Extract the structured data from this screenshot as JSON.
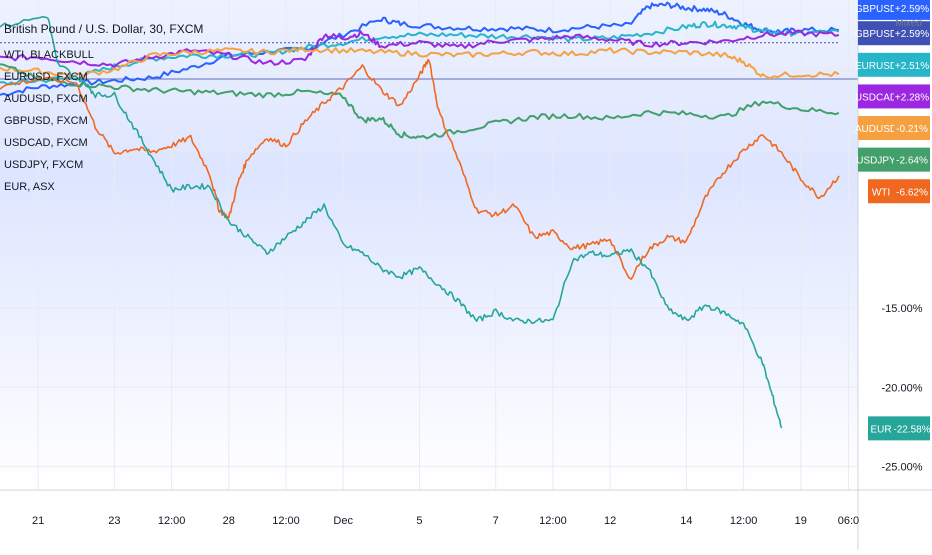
{
  "header": {
    "title": "British Pound / U.S. Dollar, 30, FXCM",
    "scale_mode": "Mixed"
  },
  "legend": [
    "WTI, BLACKBULL",
    "EURUSD, FXCM",
    "AUDUSD, FXCM",
    "GBPUSD, FXCM",
    "USDCAD, FXCM",
    "USDJPY, FXCM",
    "EUR, ASX"
  ],
  "colors": {
    "GBPUSD": "#2962ff",
    "GBPUSD_alt": "#3f51b5",
    "EURUSD": "#26b5c9",
    "USDCAD": "#9c27e0",
    "AUDUSD": "#f5a142",
    "USDJPY": "#43a06b",
    "WTI": "#f06820",
    "EUR": "#26a69a",
    "grid": "#e9ebf0",
    "area_top": "#dfe6ff",
    "area_bottom": "#ffffff"
  },
  "chart_data": {
    "type": "line",
    "yunit": "%",
    "ylim": [
      -26.5,
      4.5
    ],
    "yticks": [
      -15,
      -20,
      -25
    ],
    "ytick_labels": [
      "-15.00%",
      "-20.00%",
      "-25.00%"
    ],
    "x_labels": [
      "21",
      "23",
      "12:00",
      "28",
      "12:00",
      "Dec",
      "5",
      "7",
      "12:00",
      "12",
      "14",
      "12:00",
      "19",
      "06:0"
    ],
    "x_label_index": [
      0.0,
      4.0,
      7.0,
      10.0,
      13.0,
      16.0,
      20.0,
      24.0,
      27.0,
      30.0,
      34.0,
      37.0,
      40.0,
      42.5
    ],
    "x_range": [
      -2.0,
      43.0
    ],
    "series": [
      {
        "name": "GBPUSD",
        "color": "#2962ff",
        "width": 2.0,
        "x": [
          -2,
          0,
          2,
          4,
          6,
          8,
          10,
          12,
          14,
          16,
          18,
          19,
          21,
          23,
          25,
          27,
          29,
          31,
          32,
          33,
          34,
          35,
          36,
          37,
          38,
          39,
          40,
          42
        ],
        "y": [
          -1.5,
          -1.0,
          -0.8,
          -0.6,
          -0.4,
          0.2,
          1.0,
          1.2,
          1.4,
          2.3,
          3.3,
          3.0,
          2.8,
          2.7,
          2.7,
          2.6,
          2.8,
          2.9,
          4.1,
          4.2,
          4.0,
          3.9,
          3.6,
          3.0,
          2.6,
          2.5,
          2.6,
          2.59
        ]
      },
      {
        "name": "EURUSD",
        "color": "#26b5c9",
        "width": 2.0,
        "x": [
          -2,
          0,
          2,
          4,
          6,
          8,
          10,
          12,
          14,
          16,
          18,
          20,
          22,
          24,
          26,
          28,
          30,
          32,
          34,
          35,
          36,
          37,
          38,
          39,
          40,
          42
        ],
        "y": [
          -0.8,
          -0.6,
          -0.4,
          0.3,
          0.8,
          1.0,
          1.0,
          1.1,
          1.5,
          1.8,
          2.2,
          2.3,
          2.3,
          2.2,
          2.2,
          2.0,
          2.1,
          2.4,
          2.8,
          3.0,
          2.9,
          2.8,
          2.5,
          2.4,
          2.4,
          2.51
        ]
      },
      {
        "name": "USDCAD",
        "color": "#9c27e0",
        "width": 2.0,
        "x": [
          -2,
          0,
          2,
          4,
          6,
          8,
          10,
          12,
          14,
          15,
          16,
          17,
          18,
          20,
          22,
          24,
          26,
          28,
          30,
          32,
          34,
          36,
          38,
          40,
          42
        ],
        "y": [
          0.8,
          0.9,
          0.6,
          0.4,
          0.9,
          1.3,
          1.0,
          0.5,
          0.7,
          2.3,
          2.1,
          2.4,
          1.6,
          1.8,
          1.5,
          1.9,
          2.0,
          2.2,
          2.0,
          1.7,
          1.8,
          1.9,
          2.3,
          2.4,
          2.28
        ]
      },
      {
        "name": "AUDUSD",
        "color": "#f5a142",
        "width": 2.0,
        "x": [
          -2,
          0,
          2,
          4,
          6,
          8,
          10,
          12,
          14,
          16,
          18,
          20,
          22,
          24,
          26,
          28,
          30,
          32,
          34,
          36,
          37,
          38,
          40,
          42
        ],
        "y": [
          0.2,
          0.0,
          -0.3,
          0.1,
          1.0,
          1.2,
          1.3,
          1.2,
          1.4,
          1.3,
          1.2,
          1.1,
          1.0,
          1.1,
          1.2,
          1.1,
          1.3,
          1.2,
          1.2,
          1.0,
          0.6,
          -0.3,
          -0.2,
          -0.21
        ]
      },
      {
        "name": "USDJPY",
        "color": "#43a06b",
        "width": 2.0,
        "x": [
          -2,
          0,
          2,
          4,
          6,
          8,
          10,
          12,
          14,
          16,
          17,
          18,
          19,
          20,
          22,
          24,
          26,
          28,
          30,
          32,
          34,
          36,
          38,
          40,
          42
        ],
        "y": [
          0.4,
          -0.5,
          -0.8,
          -1.0,
          -1.2,
          -1.3,
          -1.4,
          -1.5,
          -1.3,
          -1.6,
          -3.1,
          -3.0,
          -4.0,
          -4.2,
          -3.8,
          -3.3,
          -2.9,
          -2.8,
          -3.0,
          -2.6,
          -2.7,
          -2.9,
          -1.9,
          -2.4,
          -2.64
        ]
      },
      {
        "name": "WTI",
        "color": "#f06820",
        "width": 1.6,
        "x": [
          -2,
          0,
          2,
          3,
          4,
          5,
          6,
          7,
          8,
          9,
          9.5,
          10,
          10.5,
          11,
          12,
          13,
          14,
          15,
          16,
          17,
          18,
          19,
          20,
          20.5,
          21,
          22,
          23,
          24,
          25,
          26,
          27,
          28,
          29,
          30,
          31,
          32,
          33,
          34,
          35,
          36,
          37,
          38,
          39,
          40,
          41,
          42
        ],
        "y": [
          -1.0,
          -0.5,
          -0.7,
          -3.5,
          -5.2,
          -4.9,
          -5.1,
          -4.7,
          -4.2,
          -6.5,
          -8.8,
          -9.3,
          -7.0,
          -5.5,
          -4.2,
          -4.7,
          -3.2,
          -2.0,
          -1.0,
          0.3,
          -1.2,
          -2.2,
          -0.3,
          0.8,
          -2.5,
          -5.5,
          -8.8,
          -9.1,
          -8.5,
          -10.5,
          -10.2,
          -11.2,
          -11.0,
          -10.6,
          -13.2,
          -11.3,
          -10.5,
          -10.8,
          -8.0,
          -6.3,
          -5.0,
          -4.0,
          -5.2,
          -6.8,
          -8.0,
          -6.62
        ]
      },
      {
        "name": "EUR",
        "color": "#26a69a",
        "width": 1.6,
        "x": [
          -2,
          0.5,
          1,
          2.5,
          3,
          4,
          5,
          6,
          7,
          8,
          9,
          10,
          11,
          12,
          13,
          14,
          15,
          16,
          17,
          18,
          19,
          20,
          21,
          22,
          23,
          24,
          25,
          26,
          27,
          28,
          29,
          30,
          31,
          32,
          33,
          34,
          35,
          36,
          37,
          38,
          38.5,
          39
        ],
        "y": [
          2.8,
          3.5,
          0.5,
          -0.8,
          -1.5,
          -1.5,
          -3.5,
          -5.5,
          -7.5,
          -7.3,
          -7.3,
          -9.5,
          -10.5,
          -11.5,
          -10.5,
          -9.5,
          -8.5,
          -11.0,
          -11.5,
          -12.5,
          -13.0,
          -12.5,
          -13.5,
          -14.5,
          -15.8,
          -15.2,
          -15.8,
          -15.8,
          -15.8,
          -12.0,
          -11.5,
          -11.7,
          -11.3,
          -12.5,
          -15.0,
          -15.8,
          -14.8,
          -15.3,
          -16.0,
          -18.5,
          -20.5,
          -22.58
        ]
      },
      {
        "name": "GBPUSD",
        "color": "#3f51b5",
        "width": 1.0,
        "x": [
          -2,
          42
        ],
        "y": [
          1.8,
          1.8
        ],
        "dashed": true
      }
    ],
    "hline": {
      "y": -0.5,
      "color": "#7e86c7"
    },
    "badges": [
      {
        "label": "GBPUSD",
        "value": "+2.59%",
        "color": "#2962ff",
        "y": 4.0
      },
      {
        "label": "GBPUSD",
        "value": "+2.59%",
        "color": "#3f51b5",
        "y": 2.4
      },
      {
        "label": "EURUSD",
        "value": "+2.51%",
        "color": "#26b5c9",
        "y": 0.4
      },
      {
        "label": "USDCAD",
        "value": "+2.28%",
        "color": "#9c27e0",
        "y": -1.6
      },
      {
        "label": "AUDUSD",
        "value": "-0.21%",
        "color": "#f5a142",
        "y": -3.6
      },
      {
        "label": "USDJPY",
        "value": "-2.64%",
        "color": "#43a06b",
        "y": -5.6
      },
      {
        "label": "WTI",
        "value": "-6.62%",
        "color": "#f06820",
        "y": -7.6
      },
      {
        "label": "EUR",
        "value": "-22.58%",
        "color": "#26a69a",
        "y": -22.6
      }
    ]
  }
}
